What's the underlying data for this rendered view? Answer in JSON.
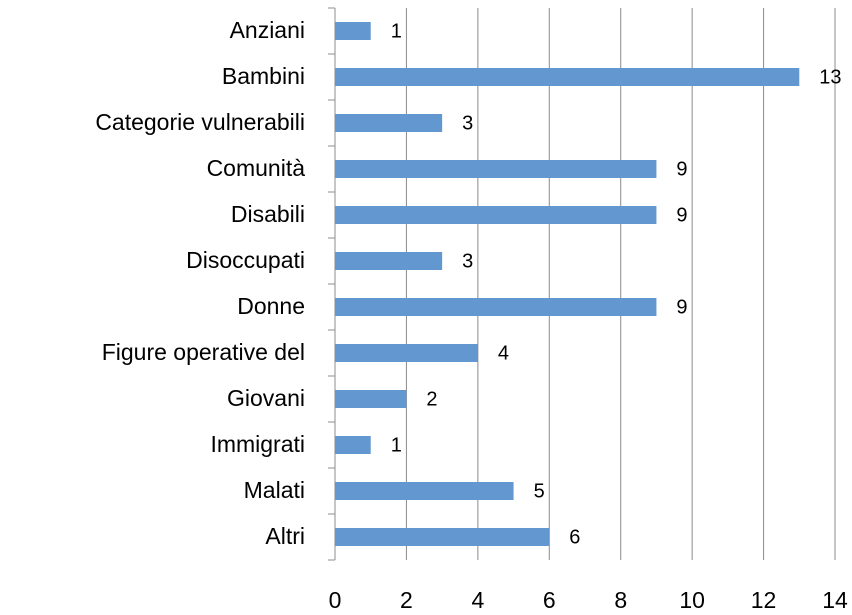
{
  "chart_data": {
    "type": "bar",
    "orientation": "horizontal",
    "categories": [
      "Anziani",
      "Bambini",
      "Categorie vulnerabili",
      "Comunità",
      "Disabili",
      "Disoccupati",
      "Donne",
      "Figure operative del",
      "Giovani",
      "Immigrati",
      "Malati",
      "Altri"
    ],
    "values": [
      1,
      13,
      3,
      9,
      9,
      3,
      9,
      4,
      2,
      1,
      5,
      6
    ],
    "color": "#6397d0",
    "xlim": [
      0,
      14
    ],
    "xticks": [
      0,
      2,
      4,
      6,
      8,
      10,
      12,
      14
    ],
    "grid": true
  }
}
